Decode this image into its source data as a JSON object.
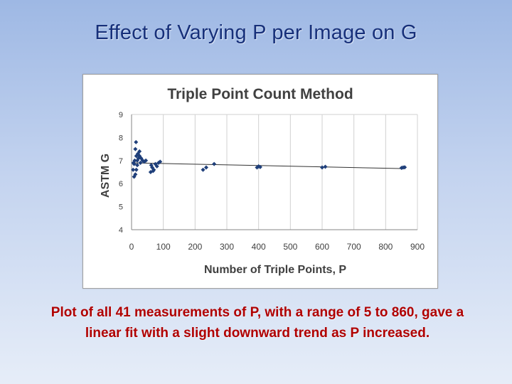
{
  "slide": {
    "title": "Effect of Varying P per Image on G",
    "caption": "Plot of all 41 measurements of P, with a range of 5 to 860, gave a linear fit with a slight downward trend as P increased."
  },
  "chart_data": {
    "type": "scatter",
    "title": "Triple Point Count Method",
    "xlabel": "Number of Triple Points, P",
    "ylabel": "ASTM G",
    "xlim": [
      0,
      900
    ],
    "ylim": [
      4,
      9
    ],
    "xticks": [
      0,
      100,
      200,
      300,
      400,
      500,
      600,
      700,
      800,
      900
    ],
    "yticks": [
      4,
      5,
      6,
      7,
      8,
      9
    ],
    "grid": "vertical",
    "legend": "none",
    "marker_color": "#1f3f7a",
    "trendline": {
      "x": [
        5,
        860
      ],
      "y": [
        6.9,
        6.65
      ]
    },
    "x": [
      5,
      6,
      8,
      10,
      12,
      14,
      15,
      18,
      20,
      22,
      25,
      28,
      30,
      35,
      40,
      60,
      62,
      65,
      70,
      75,
      80,
      85,
      90,
      225,
      235,
      260,
      395,
      400,
      405,
      600,
      610,
      850,
      855,
      860,
      18,
      15,
      12,
      8,
      25,
      45,
      68
    ],
    "y": [
      6.6,
      6.9,
      6.3,
      7.0,
      7.5,
      7.8,
      7.2,
      6.8,
      7.3,
      7.1,
      7.4,
      6.9,
      7.1,
      7.0,
      6.95,
      6.5,
      6.8,
      6.7,
      6.6,
      6.85,
      6.75,
      6.9,
      6.95,
      6.6,
      6.7,
      6.85,
      6.7,
      6.75,
      6.72,
      6.7,
      6.73,
      6.68,
      6.7,
      6.71,
      7.0,
      6.6,
      6.4,
      6.85,
      7.2,
      7.0,
      6.55
    ]
  }
}
